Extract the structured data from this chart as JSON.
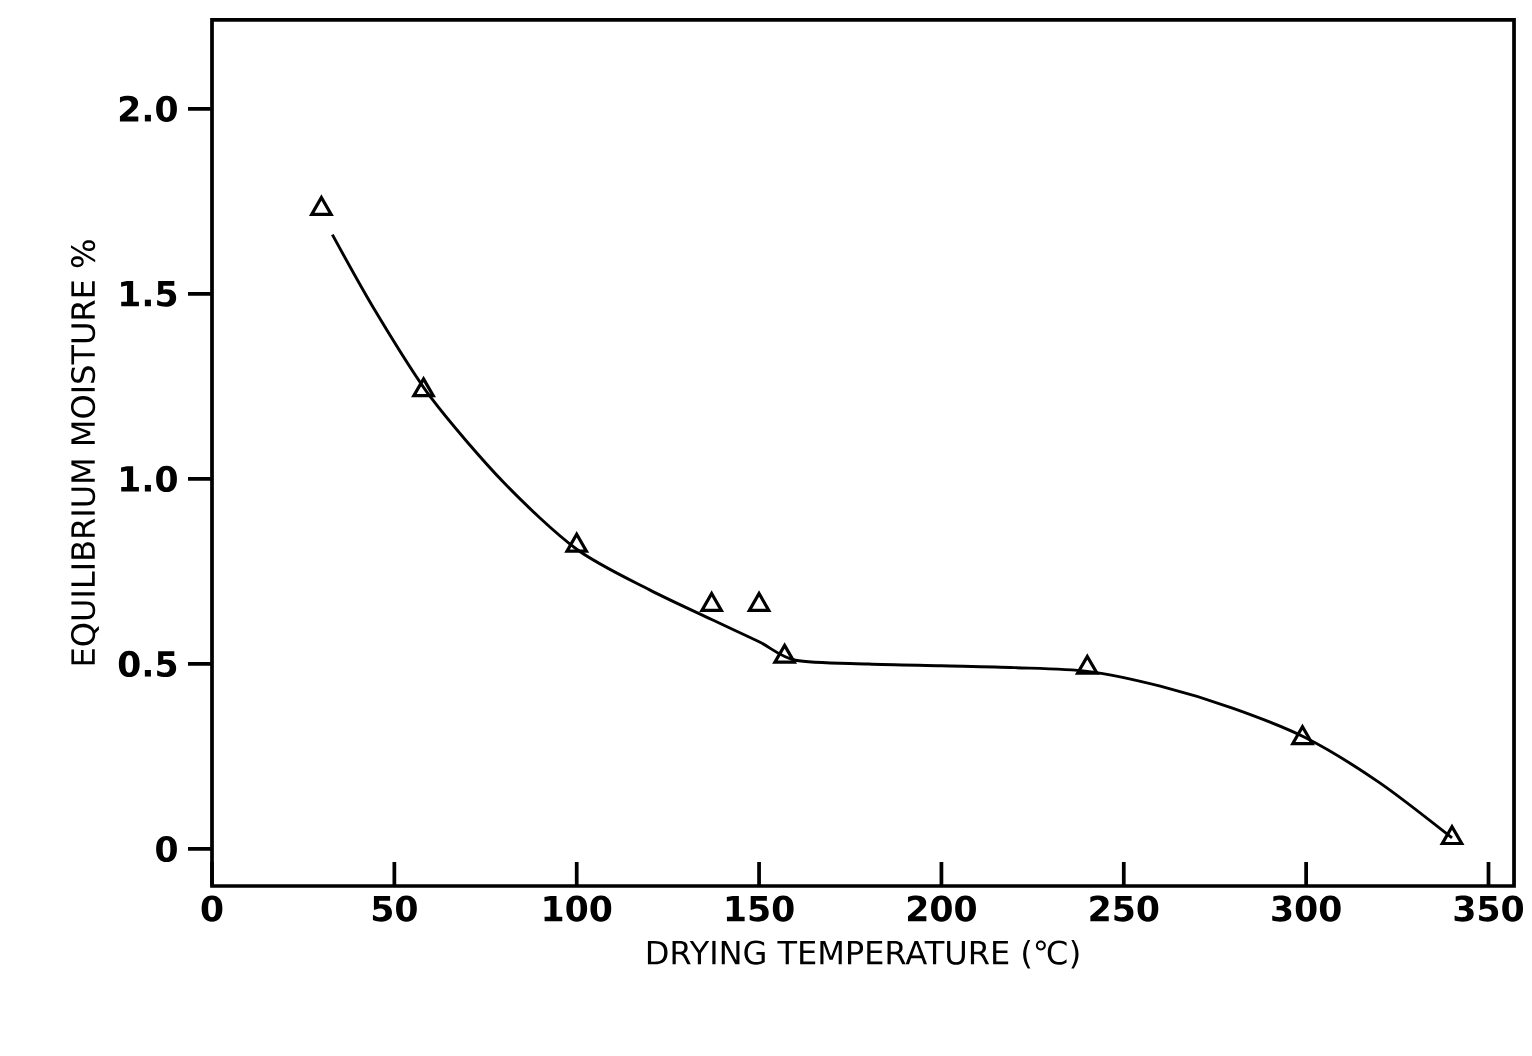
{
  "chart_data": {
    "type": "scatter",
    "xlabel": "DRYING TEMPERATURE (℃)",
    "ylabel": "EQUILIBRIUM MOISTURE %",
    "xlim": [
      0,
      357
    ],
    "ylim": [
      -0.1,
      2.24
    ],
    "xticks": [
      0,
      50,
      100,
      150,
      200,
      250,
      300,
      350
    ],
    "yticks": [
      0,
      0.5,
      {
        "value": 1,
        "label": "1.0"
      },
      1.5,
      {
        "value": 2,
        "label": "2.0"
      }
    ],
    "series": [
      {
        "marker": "triangle",
        "color": "#000000",
        "x": [
          30,
          58,
          100,
          137,
          150,
          157,
          240,
          299,
          340
        ],
        "values": [
          1.73,
          1.24,
          0.82,
          0.66,
          0.66,
          0.52,
          0.49,
          0.3,
          0.03
        ]
      },
      {
        "type": "line",
        "marker": "none",
        "color": "#000000",
        "x": [
          33,
          45,
          60,
          80,
          100,
          120,
          137,
          150,
          160,
          180,
          200,
          220,
          240,
          260,
          280,
          300,
          320,
          340
        ],
        "values": [
          1.66,
          1.45,
          1.22,
          0.99,
          0.81,
          0.7,
          0.62,
          0.56,
          0.51,
          0.5,
          0.495,
          0.49,
          0.48,
          0.44,
          0.38,
          0.3,
          0.18,
          0.03
        ]
      }
    ]
  }
}
